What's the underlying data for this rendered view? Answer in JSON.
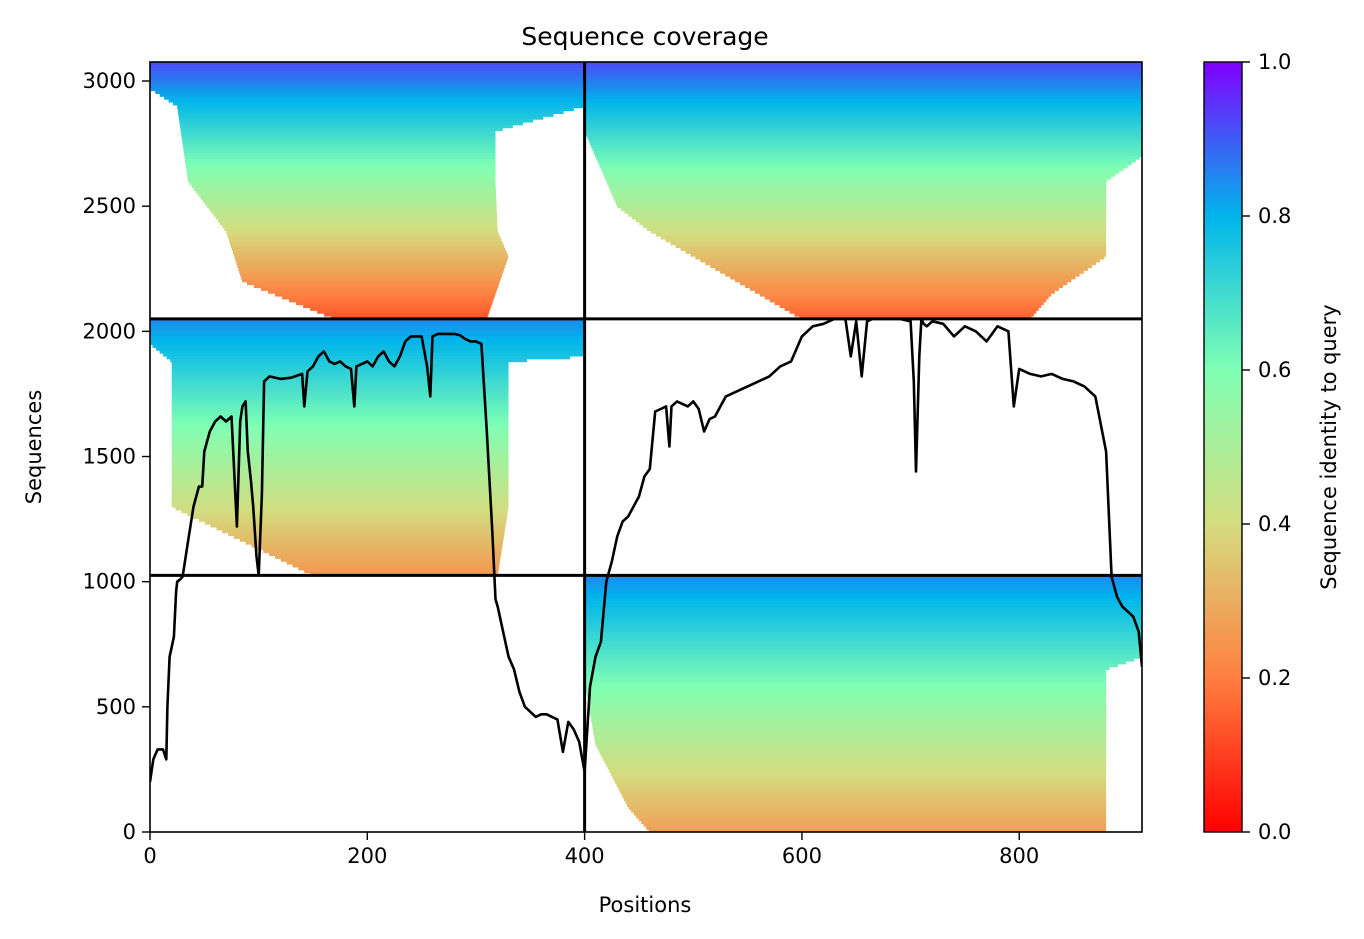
{
  "chart_data": {
    "type": "heatmap",
    "title": "Sequence coverage",
    "xlabel": "Positions",
    "ylabel": "Sequences",
    "colorbar_label": "Sequence identity to query",
    "xlim": [
      0,
      913
    ],
    "ylim": [
      0,
      3076
    ],
    "x_ticks": [
      0,
      200,
      400,
      600,
      800
    ],
    "y_ticks": [
      0,
      500,
      1000,
      1500,
      2000,
      2500,
      3000
    ],
    "colorbar_ticks": [
      0.0,
      0.2,
      0.4,
      0.6,
      0.8,
      1.0
    ],
    "colorbar_tick_labels": [
      "0.0",
      "0.2",
      "0.4",
      "0.6",
      "0.8",
      "1.0"
    ],
    "colormap": "rainbow_r",
    "colormap_stops": [
      "#ff0000",
      "#ff7f40",
      "#d4dc7f",
      "#80ffb4",
      "#00b5eb",
      "#8000ff"
    ],
    "block_boundaries": {
      "x": [
        400
      ],
      "y": [
        1025,
        2050
      ]
    },
    "blocks": [
      {
        "name": "A",
        "x_range": [
          0,
          400
        ],
        "y_range": [
          2050,
          3076
        ],
        "identity_top": 0.92,
        "identity_bottom": 0.13,
        "coverage_left": [
          [
            3076,
            0
          ],
          [
            2970,
            0
          ],
          [
            2900,
            25
          ],
          [
            2600,
            35
          ],
          [
            2400,
            70
          ],
          [
            2200,
            85
          ],
          [
            2050,
            170
          ]
        ],
        "coverage_right": [
          [
            3076,
            400
          ],
          [
            2900,
            400
          ],
          [
            2800,
            318
          ],
          [
            2600,
            318
          ],
          [
            2400,
            320
          ],
          [
            2300,
            330
          ],
          [
            2050,
            310
          ]
        ]
      },
      {
        "name": "B",
        "x_range": [
          400,
          913
        ],
        "y_range": [
          2050,
          3076
        ],
        "identity_top": 0.92,
        "identity_bottom": 0.15,
        "coverage_left": [
          [
            3076,
            400
          ],
          [
            2800,
            400
          ],
          [
            2500,
            430
          ],
          [
            2400,
            460
          ],
          [
            2300,
            500
          ],
          [
            2150,
            560
          ],
          [
            2050,
            600
          ]
        ],
        "coverage_right": [
          [
            3076,
            913
          ],
          [
            2900,
            913
          ],
          [
            2700,
            913
          ],
          [
            2600,
            880
          ],
          [
            2300,
            880
          ],
          [
            2150,
            830
          ],
          [
            2050,
            810
          ]
        ]
      },
      {
        "name": "C",
        "x_range": [
          0,
          400
        ],
        "y_range": [
          1025,
          2050
        ],
        "identity_top": 0.85,
        "identity_bottom": 0.25,
        "coverage_left": [
          [
            2050,
            0
          ],
          [
            1950,
            0
          ],
          [
            1880,
            20
          ],
          [
            1600,
            20
          ],
          [
            1300,
            20
          ],
          [
            1025,
            150
          ]
        ],
        "coverage_right": [
          [
            2050,
            400
          ],
          [
            1900,
            400
          ],
          [
            1880,
            330
          ],
          [
            1600,
            330
          ],
          [
            1300,
            330
          ],
          [
            1025,
            320
          ]
        ]
      },
      {
        "name": "E",
        "x_range": [
          400,
          913
        ],
        "y_range": [
          0,
          1025
        ],
        "identity_top": 0.85,
        "identity_bottom": 0.27,
        "coverage_left": [
          [
            1025,
            400
          ],
          [
            600,
            400
          ],
          [
            350,
            410
          ],
          [
            100,
            440
          ],
          [
            0,
            460
          ]
        ],
        "coverage_right": [
          [
            1025,
            913
          ],
          [
            700,
            913
          ],
          [
            650,
            880
          ],
          [
            300,
            880
          ],
          [
            0,
            880
          ]
        ]
      }
    ],
    "coverage_line": {
      "name": "coverage",
      "color": "#000000",
      "x": [
        0,
        3,
        7,
        12,
        15,
        16,
        18,
        22,
        24,
        25,
        28,
        30,
        35,
        40,
        45,
        48,
        50,
        55,
        60,
        65,
        70,
        75,
        78,
        80,
        83,
        85,
        88,
        90,
        93,
        95,
        98,
        100,
        103,
        105,
        110,
        120,
        130,
        140,
        142,
        145,
        150,
        155,
        160,
        165,
        170,
        175,
        180,
        185,
        188,
        190,
        195,
        200,
        205,
        210,
        215,
        220,
        225,
        230,
        235,
        240,
        245,
        250,
        255,
        258,
        260,
        265,
        270,
        275,
        280,
        285,
        290,
        295,
        300,
        305,
        310,
        315,
        318,
        320,
        325,
        330,
        335,
        340,
        345,
        350,
        355,
        360,
        365,
        370,
        375,
        380,
        385,
        390,
        395,
        400,
        405,
        410,
        415,
        420,
        425,
        430,
        435,
        440,
        445,
        450,
        455,
        460,
        465,
        470,
        475,
        478,
        480,
        485,
        490,
        495,
        500,
        505,
        510,
        515,
        520,
        525,
        530,
        540,
        550,
        560,
        570,
        580,
        590,
        600,
        610,
        620,
        630,
        640,
        645,
        650,
        655,
        660,
        665,
        670,
        680,
        690,
        700,
        703,
        705,
        708,
        710,
        712,
        715,
        720,
        730,
        740,
        750,
        760,
        770,
        780,
        790,
        795,
        800,
        805,
        810,
        820,
        830,
        840,
        850,
        860,
        870,
        880,
        885,
        890,
        895,
        900,
        905,
        910,
        913
      ],
      "y": [
        200,
        290,
        330,
        330,
        290,
        500,
        700,
        780,
        960,
        1000,
        1010,
        1020,
        1160,
        1300,
        1380,
        1380,
        1520,
        1600,
        1640,
        1660,
        1640,
        1660,
        1400,
        1220,
        1640,
        1700,
        1720,
        1520,
        1400,
        1300,
        1100,
        1025,
        1350,
        1800,
        1820,
        1810,
        1815,
        1830,
        1700,
        1840,
        1860,
        1900,
        1920,
        1880,
        1870,
        1880,
        1860,
        1850,
        1700,
        1860,
        1870,
        1880,
        1860,
        1900,
        1920,
        1880,
        1860,
        1900,
        1960,
        1980,
        1980,
        1980,
        1860,
        1740,
        1980,
        1990,
        1990,
        1990,
        1990,
        1985,
        1970,
        1960,
        1960,
        1950,
        1600,
        1200,
        930,
        900,
        800,
        700,
        650,
        560,
        500,
        480,
        460,
        470,
        470,
        460,
        450,
        320,
        440,
        410,
        360,
        240,
        580,
        700,
        760,
        1000,
        1080,
        1180,
        1240,
        1260,
        1300,
        1340,
        1420,
        1450,
        1680,
        1690,
        1700,
        1540,
        1700,
        1720,
        1710,
        1700,
        1720,
        1690,
        1600,
        1650,
        1660,
        1700,
        1740,
        1760,
        1780,
        1800,
        1820,
        1860,
        1880,
        1980,
        2020,
        2030,
        2050,
        2050,
        1900,
        2040,
        1820,
        2040,
        2050,
        2050,
        2050,
        2050,
        2040,
        1800,
        1440,
        1900,
        2050,
        2030,
        2020,
        2040,
        2030,
        1980,
        2020,
        2000,
        1960,
        2020,
        2000,
        1700,
        1850,
        1840,
        1830,
        1820,
        1830,
        1810,
        1800,
        1780,
        1740,
        1520,
        1020,
        940,
        900,
        880,
        860,
        800,
        660
      ]
    }
  }
}
